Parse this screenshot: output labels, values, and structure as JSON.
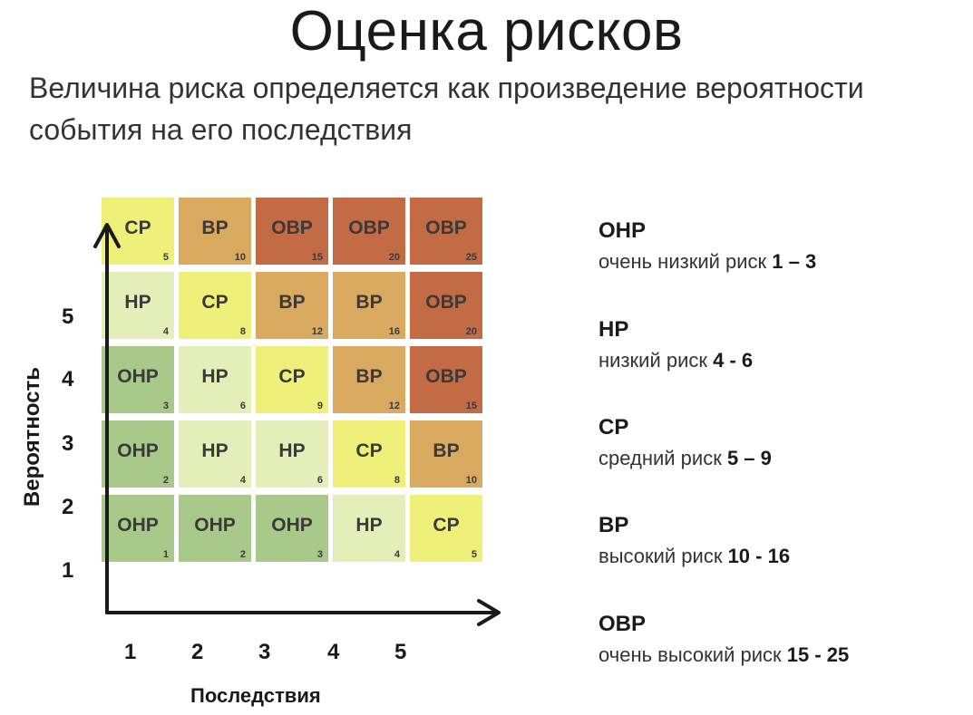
{
  "title": "Оценка рисков",
  "subtitle": {
    "line1": "Величина риска определяется как произведение вероятности",
    "line2": "события на его последствия"
  },
  "colors": {
    "ОНР": "#a9c98a",
    "НР": "#e4eeb8",
    "СР": "#eef07a",
    "ВР": "#d8a95e",
    "ОВР": "#c36b45"
  },
  "matrix": {
    "rows": [
      [
        {
          "label": "СР",
          "score": "5"
        },
        {
          "label": "ВР",
          "score": "10"
        },
        {
          "label": "ОВР",
          "score": "15"
        },
        {
          "label": "ОВР",
          "score": "20"
        },
        {
          "label": "ОВР",
          "score": "25"
        }
      ],
      [
        {
          "label": "НР",
          "score": "4"
        },
        {
          "label": "СР",
          "score": "8"
        },
        {
          "label": "ВР",
          "score": "12"
        },
        {
          "label": "ВР",
          "score": "16"
        },
        {
          "label": "ОВР",
          "score": "20"
        }
      ],
      [
        {
          "label": "ОНР",
          "score": "3"
        },
        {
          "label": "НР",
          "score": "6"
        },
        {
          "label": "СР",
          "score": "9"
        },
        {
          "label": "ВР",
          "score": "12"
        },
        {
          "label": "ОВР",
          "score": "15"
        }
      ],
      [
        {
          "label": "ОНР",
          "score": "2"
        },
        {
          "label": "НР",
          "score": "4"
        },
        {
          "label": "НР",
          "score": "6"
        },
        {
          "label": "СР",
          "score": "8"
        },
        {
          "label": "ВР",
          "score": "10"
        }
      ],
      [
        {
          "label": "ОНР",
          "score": "1"
        },
        {
          "label": "ОНР",
          "score": "2"
        },
        {
          "label": "ОНР",
          "score": "3"
        },
        {
          "label": "НР",
          "score": "4"
        },
        {
          "label": "СР",
          "score": "5"
        }
      ]
    ]
  },
  "y_axis": {
    "label": "Вероятность",
    "ticks": [
      "5",
      "4",
      "3",
      "2",
      "1"
    ]
  },
  "x_axis": {
    "label": "Последствия",
    "ticks": [
      "1",
      "2",
      "3",
      "4",
      "5"
    ]
  },
  "legend": [
    {
      "code": "ОНР",
      "text": "очень низкий риск ",
      "range": "1 – 3"
    },
    {
      "code": "НР",
      "text": "низкий риск ",
      "range": "4 - 6"
    },
    {
      "code": "СР",
      "text": "средний риск ",
      "range": "5 – 9"
    },
    {
      "code": "ВР",
      "text": "высокий риск ",
      "range": "10 - 16"
    },
    {
      "code": "ОВР",
      "text": "очень высокий риск ",
      "range": "15 - 25"
    }
  ]
}
